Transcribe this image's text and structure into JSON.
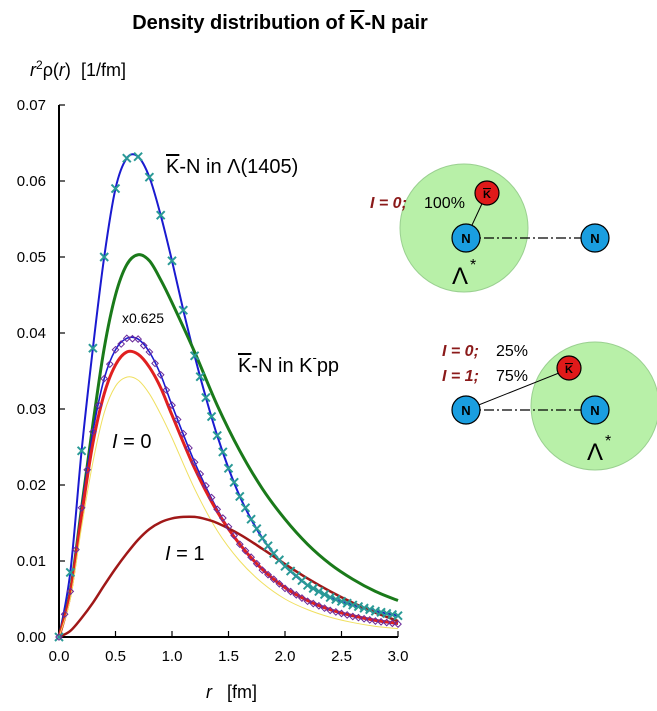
{
  "title": {
    "prefix": "Density distribution of ",
    "kbar": "K",
    "suffix": "-N pair"
  },
  "y_axis_label": {
    "r_sup": "r",
    "sup": "2",
    "rho": "ρ(",
    "r": "r",
    "close": ")",
    "unit": "[1/fm]"
  },
  "x_axis_label": {
    "r": "r",
    "unit": "[fm]"
  },
  "chart_data": {
    "type": "line",
    "title": "Density distribution of K-N pair",
    "xlabel": "r [fm]",
    "ylabel": "r²ρ(r) [1/fm]",
    "xlim": [
      0.0,
      3.0
    ],
    "ylim": [
      0.0,
      0.07
    ],
    "x_ticks": [
      "0.0",
      "0.5",
      "1.0",
      "1.5",
      "2.0",
      "2.5",
      "3.0"
    ],
    "y_ticks": [
      "0.00",
      "0.01",
      "0.02",
      "0.03",
      "0.04",
      "0.05",
      "0.06",
      "0.07"
    ],
    "grid": false,
    "series": [
      {
        "name": "K-N in Λ(1405)",
        "color": "#1a1ad0",
        "marker": "x",
        "marker_color": "#2a9a96",
        "points": [
          [
            0,
            0
          ],
          [
            0.1,
            0.0085
          ],
          [
            0.2,
            0.0245
          ],
          [
            0.3,
            0.038
          ],
          [
            0.4,
            0.05
          ],
          [
            0.5,
            0.059
          ],
          [
            0.6,
            0.063
          ],
          [
            0.7,
            0.0632
          ],
          [
            0.8,
            0.0605
          ],
          [
            0.9,
            0.0555
          ],
          [
            1.0,
            0.0495
          ],
          [
            1.1,
            0.043
          ],
          [
            1.2,
            0.037
          ],
          [
            1.3,
            0.0315
          ],
          [
            1.4,
            0.0265
          ],
          [
            1.5,
            0.0222
          ],
          [
            1.6,
            0.0185
          ],
          [
            1.7,
            0.0155
          ],
          [
            1.8,
            0.013
          ],
          [
            1.9,
            0.011
          ],
          [
            2.0,
            0.0093
          ],
          [
            2.2,
            0.0068
          ],
          [
            2.4,
            0.0052
          ],
          [
            2.6,
            0.0042
          ],
          [
            2.8,
            0.0034
          ],
          [
            3.0,
            0.0028
          ]
        ]
      },
      {
        "name": "K-N in K-pp",
        "color": "#1a7a1a",
        "points": [
          [
            0,
            0
          ],
          [
            0.1,
            0.006
          ],
          [
            0.2,
            0.017
          ],
          [
            0.3,
            0.028
          ],
          [
            0.4,
            0.038
          ],
          [
            0.5,
            0.045
          ],
          [
            0.6,
            0.049
          ],
          [
            0.7,
            0.0503
          ],
          [
            0.8,
            0.0495
          ],
          [
            0.9,
            0.047
          ],
          [
            1.0,
            0.044
          ],
          [
            1.2,
            0.0375
          ],
          [
            1.4,
            0.0305
          ],
          [
            1.6,
            0.0245
          ],
          [
            1.8,
            0.0195
          ],
          [
            2.0,
            0.0155
          ],
          [
            2.2,
            0.0122
          ],
          [
            2.4,
            0.0096
          ],
          [
            2.6,
            0.0076
          ],
          [
            2.8,
            0.006
          ],
          [
            3.0,
            0.0048
          ]
        ]
      },
      {
        "name": "x0.625",
        "color": "#1a1ad0",
        "marker": "diamond",
        "marker_color": "#6a2a9a",
        "points": [
          [
            0,
            0
          ],
          [
            0.1,
            0.006
          ],
          [
            0.2,
            0.017
          ],
          [
            0.3,
            0.027
          ],
          [
            0.4,
            0.034
          ],
          [
            0.5,
            0.0378
          ],
          [
            0.6,
            0.0393
          ],
          [
            0.7,
            0.0392
          ],
          [
            0.8,
            0.0375
          ],
          [
            0.9,
            0.0345
          ],
          [
            1.0,
            0.0305
          ],
          [
            1.2,
            0.023
          ],
          [
            1.4,
            0.0168
          ],
          [
            1.6,
            0.0122
          ],
          [
            1.8,
            0.0088
          ],
          [
            2.0,
            0.0064
          ],
          [
            2.2,
            0.0047
          ],
          [
            2.4,
            0.0035
          ],
          [
            2.6,
            0.0027
          ],
          [
            2.8,
            0.0021
          ],
          [
            3.0,
            0.0017
          ]
        ]
      },
      {
        "name": "I = 0",
        "color": "#e02020",
        "points": [
          [
            0,
            0
          ],
          [
            0.1,
            0.0057
          ],
          [
            0.2,
            0.016
          ],
          [
            0.3,
            0.0255
          ],
          [
            0.4,
            0.032
          ],
          [
            0.5,
            0.0358
          ],
          [
            0.6,
            0.0375
          ],
          [
            0.7,
            0.0372
          ],
          [
            0.8,
            0.0355
          ],
          [
            0.9,
            0.0328
          ],
          [
            1.0,
            0.0292
          ],
          [
            1.2,
            0.0222
          ],
          [
            1.4,
            0.0165
          ],
          [
            1.6,
            0.0122
          ],
          [
            1.8,
            0.0089
          ],
          [
            2.0,
            0.0065
          ],
          [
            2.2,
            0.0048
          ],
          [
            2.4,
            0.0036
          ],
          [
            2.6,
            0.0028
          ],
          [
            2.8,
            0.0022
          ],
          [
            3.0,
            0.0018
          ]
        ]
      },
      {
        "name": "",
        "color": "#f0e060",
        "points": [
          [
            0,
            0
          ],
          [
            0.1,
            0.005
          ],
          [
            0.2,
            0.0145
          ],
          [
            0.3,
            0.023
          ],
          [
            0.4,
            0.0295
          ],
          [
            0.5,
            0.033
          ],
          [
            0.6,
            0.0342
          ],
          [
            0.7,
            0.0338
          ],
          [
            0.8,
            0.032
          ],
          [
            0.9,
            0.0293
          ],
          [
            1.0,
            0.0262
          ],
          [
            1.2,
            0.0195
          ],
          [
            1.4,
            0.014
          ],
          [
            1.6,
            0.01
          ],
          [
            1.8,
            0.0071
          ],
          [
            2.0,
            0.005
          ],
          [
            2.2,
            0.0036
          ],
          [
            2.4,
            0.0026
          ],
          [
            2.6,
            0.0019
          ],
          [
            2.8,
            0.0014
          ],
          [
            3.0,
            0.0011
          ]
        ]
      },
      {
        "name": "I = 1",
        "color": "#a01818",
        "points": [
          [
            0,
            0
          ],
          [
            0.1,
            0.0008
          ],
          [
            0.2,
            0.0025
          ],
          [
            0.3,
            0.0045
          ],
          [
            0.4,
            0.0068
          ],
          [
            0.5,
            0.009
          ],
          [
            0.6,
            0.011
          ],
          [
            0.7,
            0.0128
          ],
          [
            0.8,
            0.0142
          ],
          [
            0.9,
            0.0151
          ],
          [
            1.0,
            0.0156
          ],
          [
            1.1,
            0.0158
          ],
          [
            1.2,
            0.0158
          ],
          [
            1.3,
            0.0155
          ],
          [
            1.4,
            0.015
          ],
          [
            1.6,
            0.0135
          ],
          [
            1.8,
            0.0116
          ],
          [
            2.0,
            0.0096
          ],
          [
            2.2,
            0.0077
          ],
          [
            2.4,
            0.006
          ],
          [
            2.6,
            0.0045
          ],
          [
            2.8,
            0.0032
          ],
          [
            3.0,
            0.0021
          ]
        ]
      }
    ],
    "labels": {
      "lambda": {
        "kbar": "K",
        "text": "-N in ",
        "lam": "Λ(1405)"
      },
      "kpp": {
        "kbar": "K",
        "text": "-N in K",
        "sup": "-",
        "pp": "pp"
      },
      "scale": "x0.625",
      "i0": {
        "italic": "I",
        "rest": " = 0"
      },
      "i1": {
        "italic": "I",
        "rest": " = 1"
      }
    }
  },
  "diagrams": {
    "top": {
      "iso_label": "I = 0;",
      "pct": "100%",
      "n1": "N",
      "n2": "N",
      "k": "K",
      "lambda": "Λ",
      "star": "*"
    },
    "bottom": {
      "iso0_label": "I = 0;",
      "iso0_pct": "25%",
      "iso1_label": "I = 1;",
      "iso1_pct": "75%",
      "n1": "N",
      "n2": "N",
      "k": "K",
      "lambda": "Λ",
      "star": "*"
    }
  },
  "colors": {
    "blob": "#b8f0a8",
    "nucleon": "#1a9ee0",
    "kaon": "#e01a1a",
    "iso_text": "#8b1a1a"
  }
}
